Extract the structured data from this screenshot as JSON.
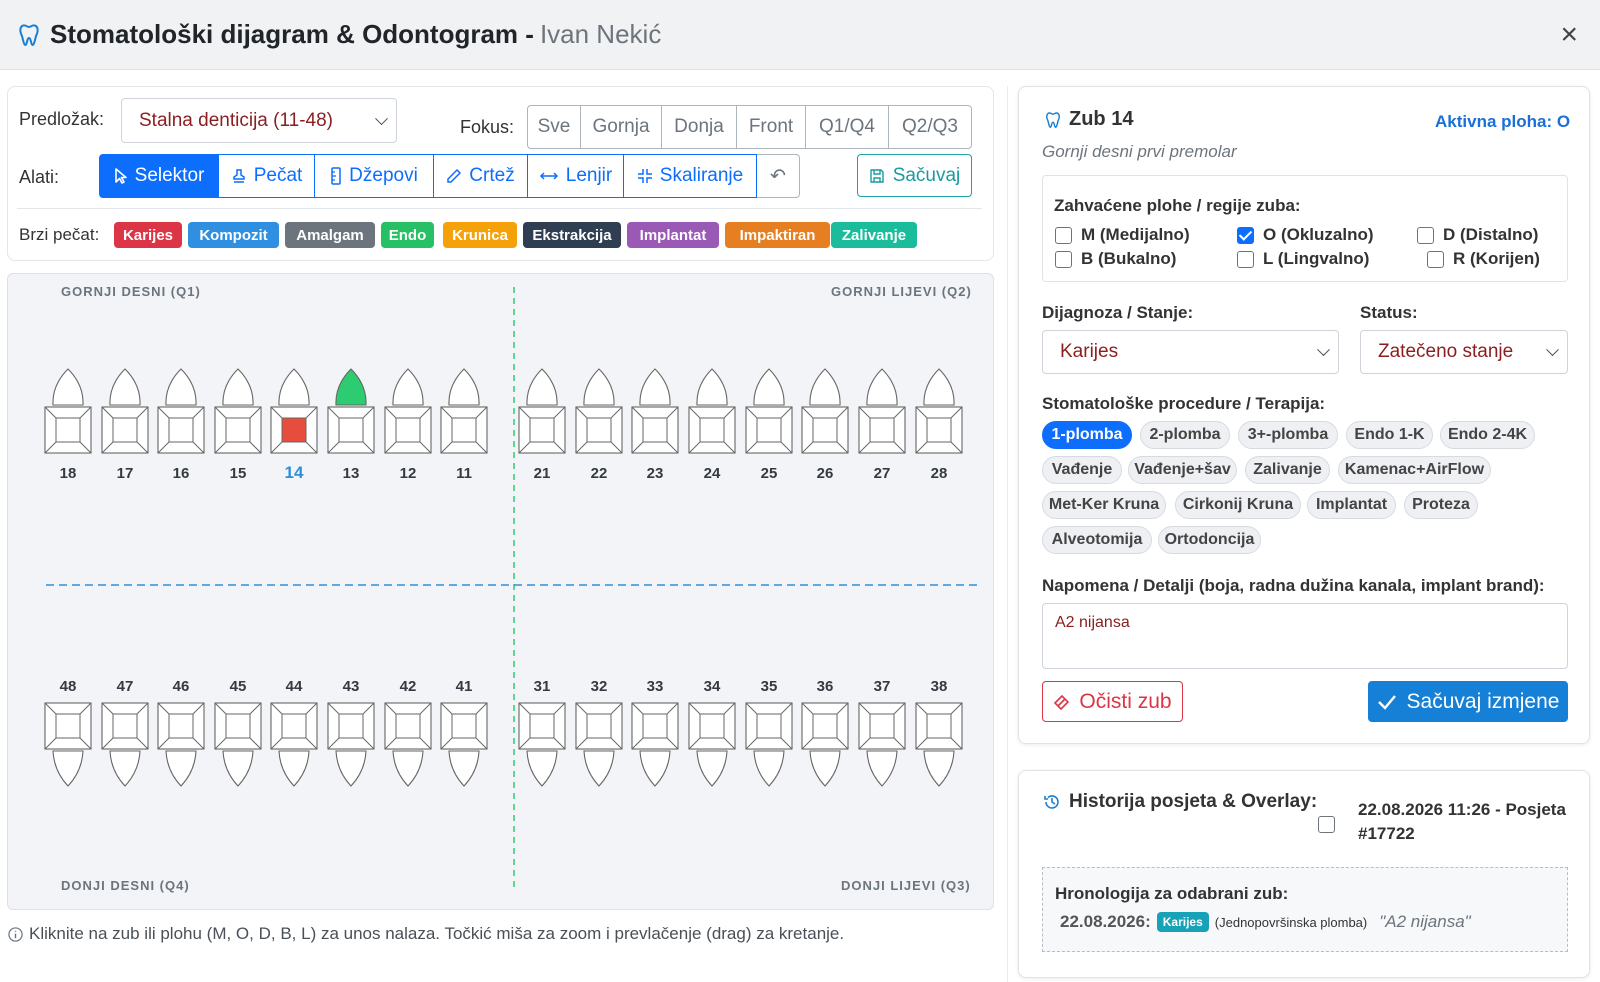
{
  "header": {
    "title": "Stomatološki dijagram & Odontogram -",
    "patient": "Ivan Nekić",
    "close": "×"
  },
  "toolbar": {
    "template_label": "Predložak:",
    "template_value": "Stalna denticija (11-48)",
    "focus_label": "Fokus:",
    "focus_options": [
      "Sve",
      "Gornja",
      "Donja",
      "Front",
      "Q1/Q4",
      "Q2/Q3"
    ],
    "tools_label": "Alati:",
    "tools": [
      "Selektor",
      "Pečat",
      "Džepovi",
      "Crtež",
      "Lenjir",
      "Skaliranje"
    ],
    "undo": "↶",
    "save": "Sačuvaj",
    "stamp_label": "Brzi pečat:",
    "stamps": [
      {
        "label": "Karijes",
        "color": "#dc3545"
      },
      {
        "label": "Kompozit",
        "color": "#2f8fe0"
      },
      {
        "label": "Amalgam",
        "color": "#6c757d"
      },
      {
        "label": "Endo",
        "color": "#28c064"
      },
      {
        "label": "Krunica",
        "color": "#f5a20a"
      },
      {
        "label": "Ekstrakcija",
        "color": "#2f3e50"
      },
      {
        "label": "Implantat",
        "color": "#9b59b6"
      },
      {
        "label": "Impaktiran",
        "color": "#e67e22"
      },
      {
        "label": "Zalivanje",
        "color": "#1abc9c"
      }
    ]
  },
  "chart": {
    "quadrants": {
      "q1": "GORNJI DESNI (Q1)",
      "q2": "GORNJI LIJEVI (Q2)",
      "q4": "DONJI DESNI (Q4)",
      "q3": "DONJI LIJEVI (Q3)"
    },
    "upper_teeth": [
      "18",
      "17",
      "16",
      "15",
      "14",
      "13",
      "12",
      "11",
      "21",
      "22",
      "23",
      "24",
      "25",
      "26",
      "27",
      "28"
    ],
    "lower_teeth": [
      "48",
      "47",
      "46",
      "45",
      "44",
      "43",
      "42",
      "41",
      "31",
      "32",
      "33",
      "34",
      "35",
      "36",
      "37",
      "38"
    ],
    "selected_tooth": "14",
    "caries_color": "#e74c3c",
    "endo_color": "#2ecc71",
    "hint": "Kliknite na zub ili plohu (M, O, D, B, L) za unos nalaza. Točkić miša za zoom i prevlačenje (drag) za kretanje."
  },
  "detail": {
    "title": "Zub 14",
    "active_face": "Aktivna ploha: O",
    "subtitle": "Gornji desni prvi premolar",
    "faces_title": "Zahvaćene plohe / regije zuba:",
    "faces": [
      {
        "label": "M (Medijalno)",
        "checked": false
      },
      {
        "label": "O (Okluzalno)",
        "checked": true
      },
      {
        "label": "D (Distalno)",
        "checked": false
      },
      {
        "label": "B (Bukalno)",
        "checked": false
      },
      {
        "label": "L (Lingvalno)",
        "checked": false
      },
      {
        "label": "R (Korijen)",
        "checked": false
      }
    ],
    "diagnosis_label": "Dijagnoza / Stanje:",
    "diagnosis_value": "Karijes",
    "status_label": "Status:",
    "status_value": "Zatečeno stanje",
    "procedures_label": "Stomatološke procedure / Terapija:",
    "procedures": [
      "1-plomba",
      "2-plomba",
      "3+-plomba",
      "Endo 1-K",
      "Endo 2-4K",
      "Vađenje",
      "Vađenje+šav",
      "Zalivanje",
      "Kamenac+AirFlow",
      "Met-Ker Kruna",
      "Cirkonij Kruna",
      "Implantat",
      "Proteza",
      "Alveotomija",
      "Ortodoncija"
    ],
    "selected_procedure": "1-plomba",
    "note_label": "Napomena / Detalji (boja, radna dužina kanala, implant brand):",
    "note_value": "A2 nijansa",
    "clear_button": "Očisti zub",
    "save_button": "Sačuvaj izmjene"
  },
  "history": {
    "title": "Historija posjeta & Overlay:",
    "visit_line1": "22.08.2026 11:26 - Posjeta",
    "visit_line2": "#17722",
    "timeline_title": "Hronologija za odabrani zub:",
    "entry_date": "22.08.2026:",
    "entry_badge": "Karijes",
    "entry_desc": "(Jednopovršinska plomba)",
    "entry_note": "\"A2 nijansa\""
  }
}
